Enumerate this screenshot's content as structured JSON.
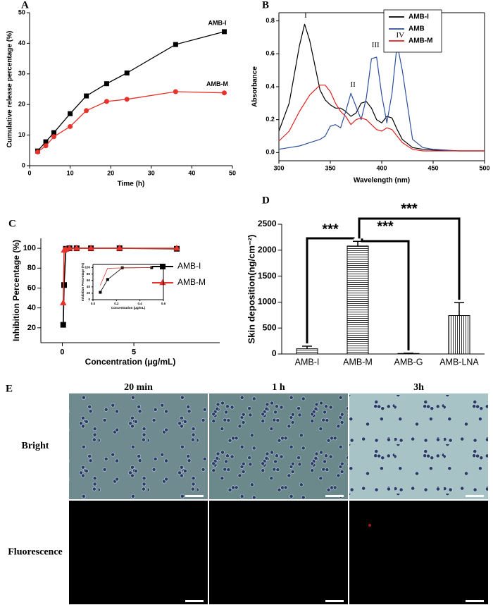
{
  "chart_data": [
    {
      "panel": "A",
      "type": "line",
      "x": [
        2,
        4,
        6,
        10,
        14,
        19,
        24,
        36,
        48
      ],
      "series": [
        {
          "name": "AMB-I",
          "color": "#000000",
          "marker": "square",
          "values": [
            4.8,
            7.8,
            10.8,
            17,
            22.8,
            26.8,
            30.3,
            39.6,
            43.8
          ]
        },
        {
          "name": "AMB-M",
          "color": "#e8322a",
          "marker": "circle",
          "values": [
            4.5,
            6.5,
            9.5,
            12.8,
            18,
            21,
            21.7,
            24.2,
            23.8
          ]
        }
      ],
      "xlim": [
        0,
        50
      ],
      "ylim": [
        0,
        50
      ],
      "xticks": [
        0,
        10,
        20,
        30,
        40,
        50
      ],
      "yticks": [
        0,
        10,
        20,
        30,
        40,
        50
      ],
      "xlabel": "Time (h)",
      "ylabel": "Cumulative release percentage (%)",
      "legend": "inline"
    },
    {
      "panel": "B",
      "type": "line",
      "x": [
        300,
        310,
        320,
        325,
        330,
        340,
        345,
        350,
        355,
        360,
        365,
        370,
        375,
        380,
        385,
        390,
        395,
        400,
        405,
        410,
        415,
        420,
        430,
        440,
        450,
        475,
        500
      ],
      "series": [
        {
          "name": "AMB-I",
          "color": "#000000",
          "values": [
            0.13,
            0.3,
            0.65,
            0.78,
            0.68,
            0.38,
            0.32,
            0.29,
            0.27,
            0.27,
            0.25,
            0.22,
            0.24,
            0.3,
            0.31,
            0.27,
            0.2,
            0.18,
            0.22,
            0.21,
            0.14,
            0.08,
            0.03,
            0.02,
            0.015,
            0.01,
            0.01
          ]
        },
        {
          "name": "AMB",
          "color": "#2e4f9c",
          "values": [
            0.02,
            0.03,
            0.04,
            0.05,
            0.06,
            0.08,
            0.1,
            0.16,
            0.17,
            0.15,
            0.25,
            0.36,
            0.28,
            0.2,
            0.33,
            0.57,
            0.58,
            0.35,
            0.18,
            0.36,
            0.66,
            0.5,
            0.08,
            0.03,
            0.02,
            0.01,
            0.01
          ]
        },
        {
          "name": "AMB-M",
          "color": "#e02020",
          "values": [
            0.07,
            0.13,
            0.25,
            0.3,
            0.35,
            0.41,
            0.41,
            0.37,
            0.3,
            0.25,
            0.22,
            0.17,
            0.2,
            0.21,
            0.2,
            0.17,
            0.14,
            0.13,
            0.15,
            0.14,
            0.1,
            0.06,
            0.02,
            0.01,
            0.01,
            0.01,
            0.01
          ]
        }
      ],
      "xlim": [
        300,
        500
      ],
      "ylim": [
        -0.05,
        0.85
      ],
      "xticks": [
        300,
        350,
        400,
        450,
        500
      ],
      "yticks": [
        {
          "value": 0,
          "label": "0.0"
        },
        0.2,
        0.4,
        0.6,
        0.8
      ],
      "xlabel": "Wavelength (nm)",
      "ylabel": "Absorbance",
      "legend": "upper right",
      "annotations": [
        "I",
        "II",
        "III",
        "IV"
      ]
    },
    {
      "panel": "C",
      "type": "line",
      "x": [
        0.0625,
        0.125,
        0.25,
        0.5,
        1,
        2,
        4,
        8
      ],
      "series": [
        {
          "name": "AMB-I",
          "color": "#000000",
          "marker": "square",
          "values": [
            23,
            63,
            99.5,
            100,
            100,
            100,
            100,
            99.5
          ]
        },
        {
          "name": "AMB-M",
          "color": "#e8322a",
          "marker": "triangle",
          "values": [
            45,
            98,
            99,
            100,
            100,
            100,
            100,
            100
          ]
        }
      ],
      "xlim": [
        -1.5,
        11
      ],
      "ylim": [
        5,
        110
      ],
      "xticks": [
        0,
        5
      ],
      "yticks": [
        20,
        40,
        60,
        80,
        100
      ],
      "xlabel": "Concentration (μg/mL)",
      "ylabel": "Inhibition Percentage (%)",
      "legend": "center right"
    },
    {
      "type": "line",
      "x": [
        0.0625,
        0.125,
        0.25,
        0.5
      ],
      "series": [
        {
          "name": "AMB-I",
          "color": "#000000",
          "marker": "square",
          "values": [
            23,
            63,
            99.5,
            100
          ]
        },
        {
          "name": "AMB-M",
          "color": "#e8322a",
          "values": [
            45,
            98,
            99,
            100
          ]
        }
      ],
      "xlim": [
        0,
        0.6
      ],
      "ylim": [
        0,
        110
      ],
      "xticks": [
        {
          "value": 0,
          "label": "0.0"
        },
        0.2,
        0.4,
        0.6
      ],
      "yticks": [
        0,
        20,
        40,
        60,
        80,
        100
      ],
      "xlabel": "Concentration (μg/mL)",
      "ylabel": "Inhibition Percentage (%)"
    },
    {
      "panel": "D",
      "type": "bar",
      "categories": [
        "AMB-I",
        "AMB-M",
        "AMB-G",
        "AMB-LNA"
      ],
      "values": [
        100,
        2080,
        10,
        740
      ],
      "errors": [
        50,
        90,
        5,
        250
      ],
      "ylim": [
        0,
        2500
      ],
      "yticks": [
        0,
        500,
        1000,
        1500,
        2000,
        2500
      ],
      "ylabel": "Skin deposition(ng/cm⁻²)",
      "annotations": [
        "***",
        "***",
        "***"
      ]
    }
  ],
  "image_panel": {
    "panel": "E",
    "columns": [
      "20 min",
      "1 h",
      "3h"
    ],
    "rows": [
      "Bright",
      "Fluorescence"
    ]
  }
}
